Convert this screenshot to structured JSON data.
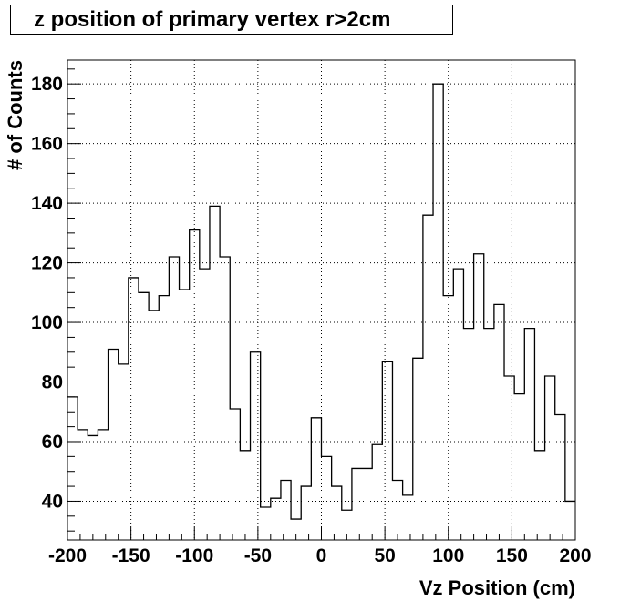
{
  "chart_data": {
    "type": "histogram",
    "title": "z position of primary vertex r>2cm",
    "xlabel": "Vz Position (cm)",
    "ylabel": "# of Counts",
    "xlim": [
      -200,
      200
    ],
    "ylim": [
      27,
      188
    ],
    "grid": true,
    "legend": "none",
    "bin_width": 8,
    "bin_edges_start": -200,
    "x_ticks": [
      -200,
      -150,
      -100,
      -50,
      0,
      50,
      100,
      150,
      200
    ],
    "x_tick_labels": [
      "-200",
      "-150",
      "-100",
      "-50",
      "0",
      "50",
      "100",
      "150",
      "200"
    ],
    "y_ticks": [
      40,
      60,
      80,
      100,
      120,
      140,
      160,
      180
    ],
    "y_tick_labels": [
      "40",
      "60",
      "80",
      "100",
      "120",
      "140",
      "160",
      "180"
    ],
    "values": [
      75,
      64,
      62,
      64,
      91,
      86,
      115,
      110,
      104,
      109,
      122,
      111,
      131,
      118,
      139,
      122,
      71,
      57,
      90,
      38,
      41,
      47,
      34,
      45,
      68,
      55,
      45,
      37,
      51,
      51,
      59,
      87,
      47,
      42,
      88,
      136,
      180,
      109,
      118,
      98,
      123,
      98,
      106,
      82,
      76,
      98,
      57,
      82,
      69,
      40
    ],
    "line_color": "#000000",
    "grid_color": "#000000"
  }
}
